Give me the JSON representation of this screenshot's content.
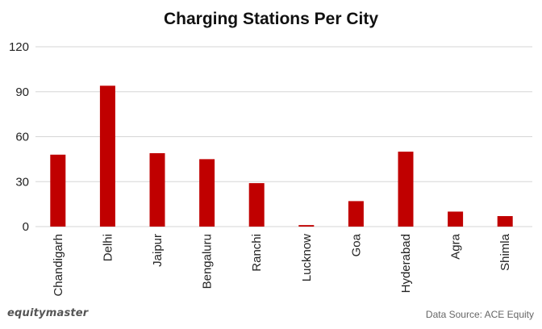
{
  "chart_data": {
    "type": "bar",
    "title": "Charging Stations Per City",
    "categories": [
      "Chandigarh",
      "Delhi",
      "Jaipur",
      "Bengaluru",
      "Ranchi",
      "Lucknow",
      "Goa",
      "Hyderabad",
      "Agra",
      "Shimla"
    ],
    "series": [
      {
        "values": [
          48,
          94,
          49,
          45,
          29,
          1,
          17,
          50,
          10,
          7
        ]
      }
    ],
    "ylim": [
      0,
      120
    ],
    "yticks": [
      0,
      30,
      60,
      90,
      120
    ],
    "xlabel": "",
    "ylabel": "",
    "grid": true,
    "bar_color": "#c00000",
    "grid_color": "#d6d6d6"
  },
  "footer": {
    "brand": "equitymaster",
    "source": "Data Source: ACE Equity"
  }
}
